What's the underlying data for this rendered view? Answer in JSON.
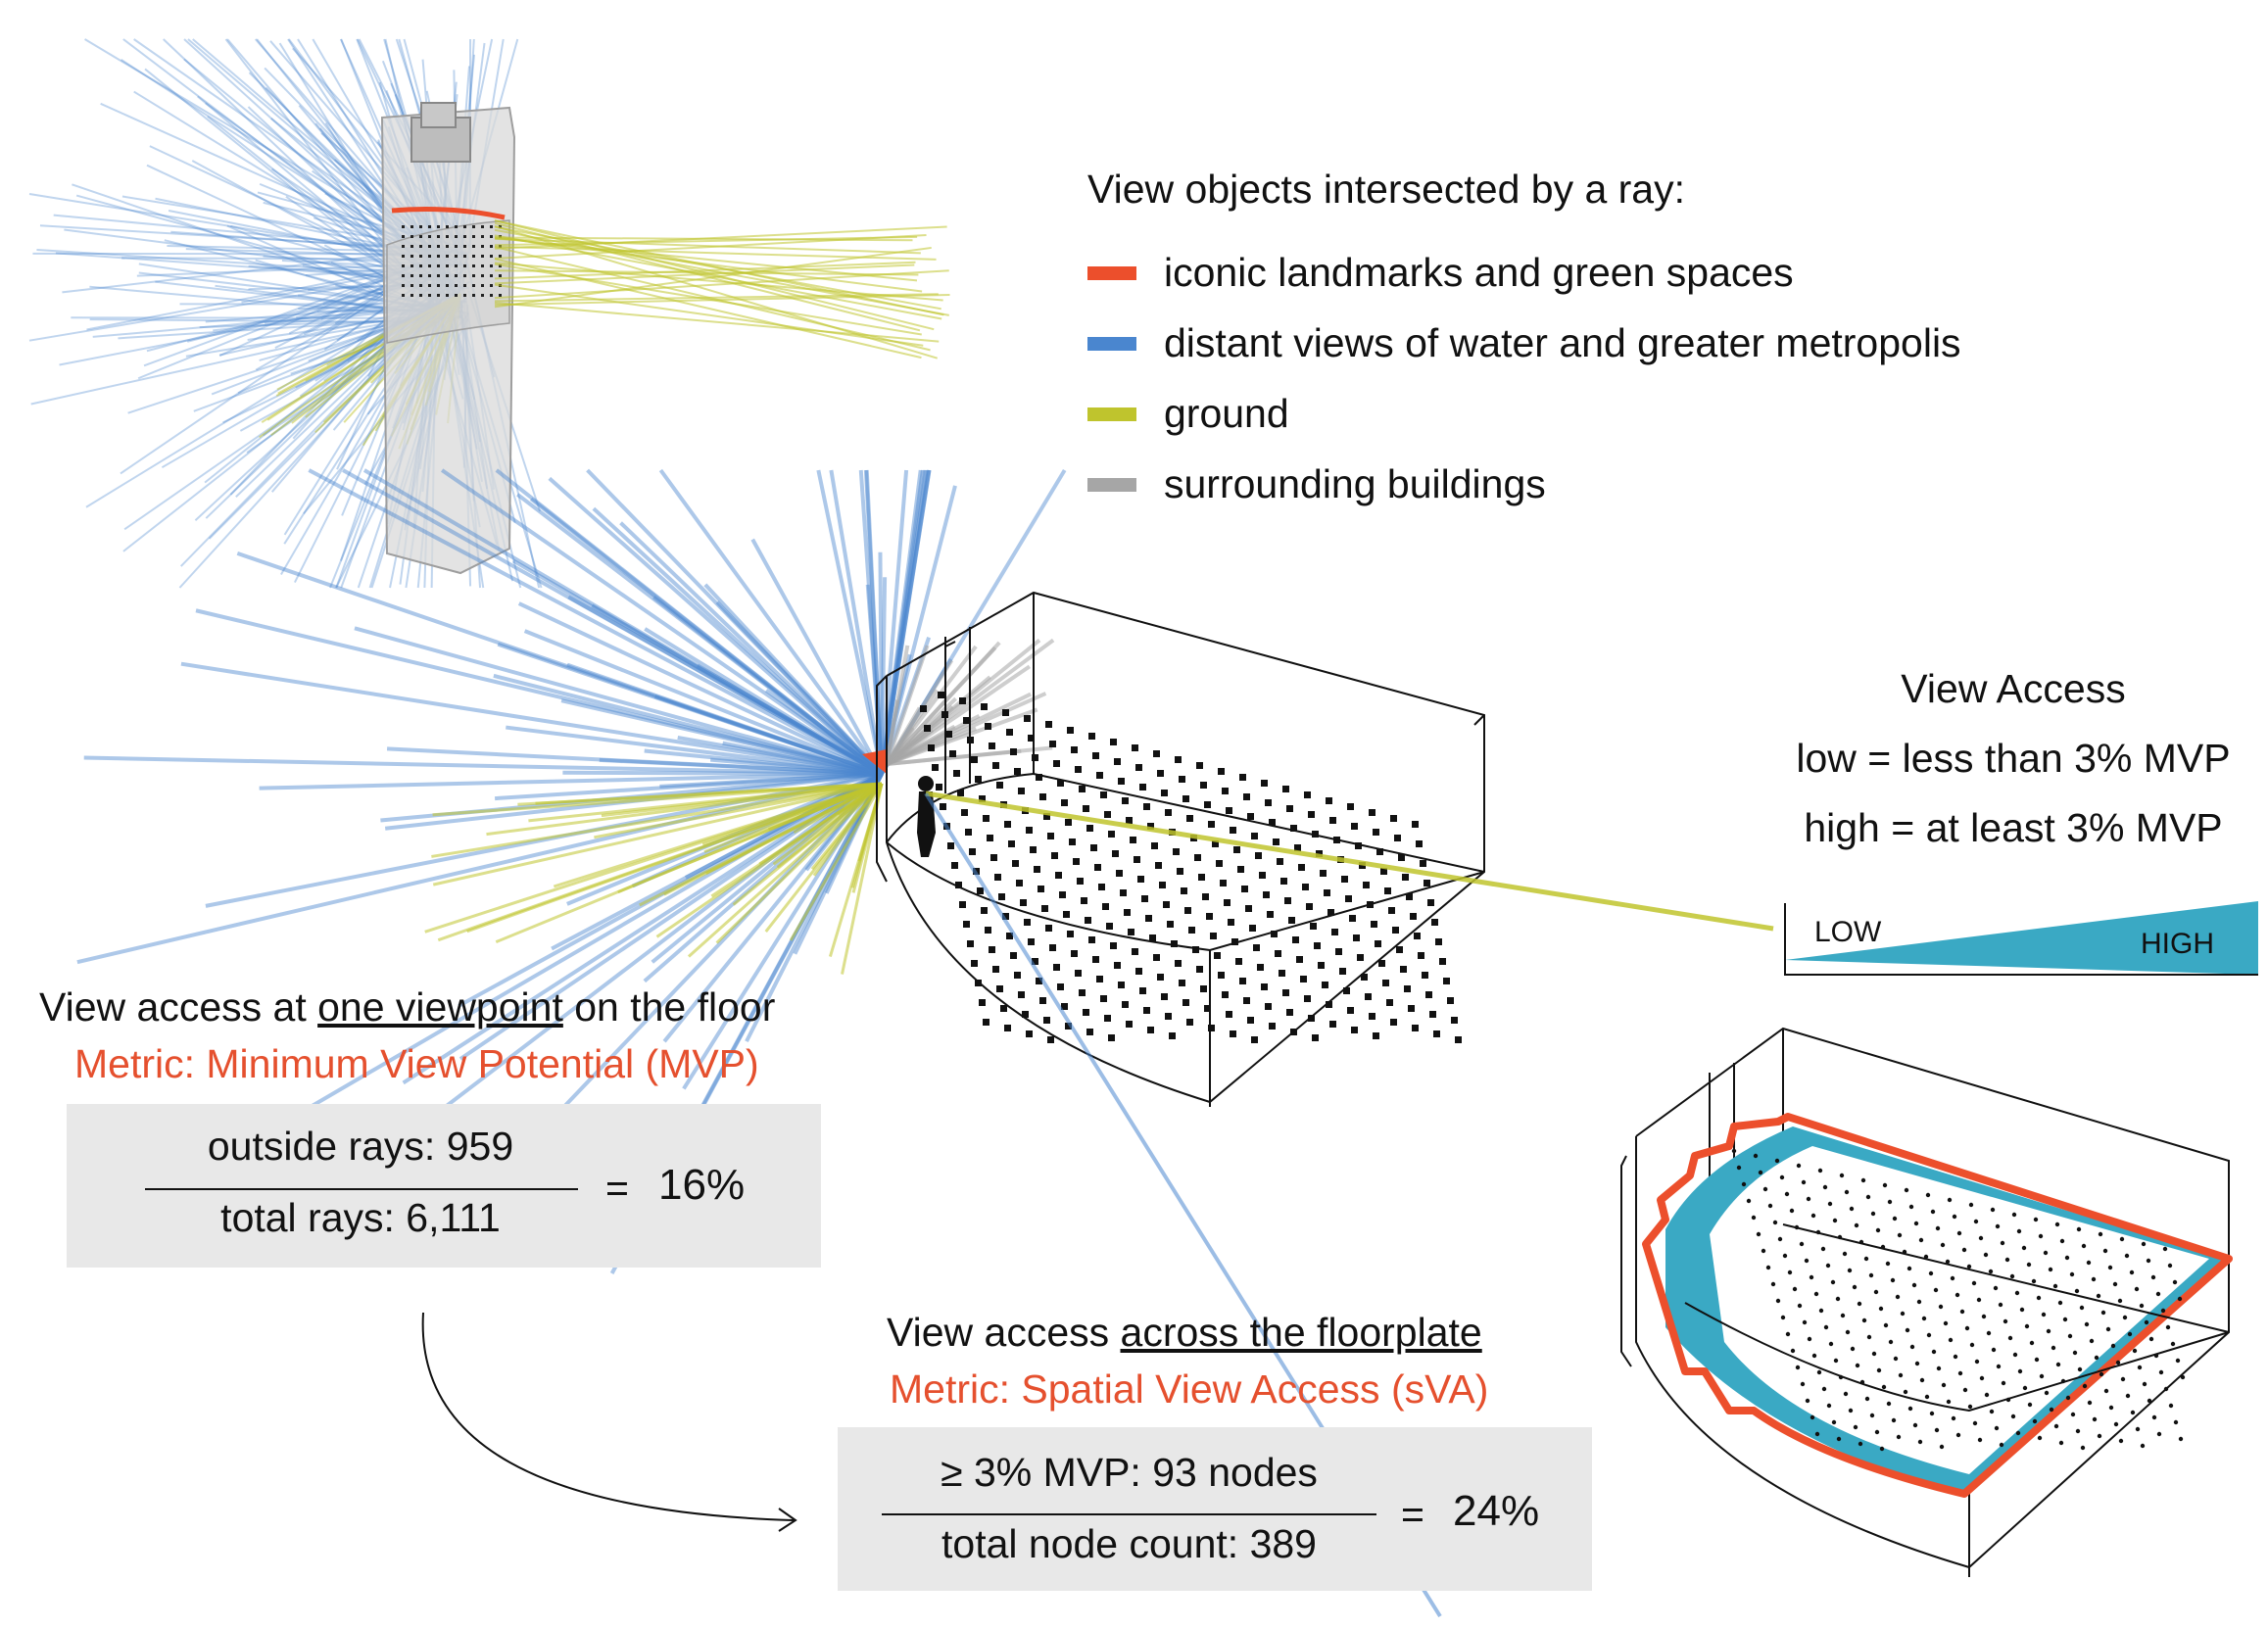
{
  "legend": {
    "title": "View objects intersected by a ray:",
    "items": [
      {
        "label": "iconic landmarks and green spaces",
        "color": "#ec4f2c"
      },
      {
        "label": "distant views of water and greater metropolis",
        "color": "#4a86cf"
      },
      {
        "label": "ground",
        "color": "#bfc42d"
      },
      {
        "label": "surrounding buildings",
        "color": "#a6a6a6"
      }
    ]
  },
  "view_access": {
    "title": "View Access",
    "low_def": "low = less than 3% MVP",
    "high_def": "high = at least 3% MVP",
    "low_label": "LOW",
    "high_label": "HIGH",
    "gradient_color": "#3aa9c4"
  },
  "viewpoint": {
    "heading_pre": "View access at ",
    "heading_underlined": "one viewpoint",
    "heading_post": " on the floor",
    "metric": "Metric: Minimum View Potential (MVP)",
    "numerator": "outside rays: 959",
    "denominator": "total rays: 6,111",
    "equals": "=",
    "result": "16%"
  },
  "floorplate": {
    "heading_pre": "View access ",
    "heading_underlined": "across the floorplate",
    "metric": "Metric: Spatial View Access (sVA)",
    "numerator": "≥ 3% MVP: 93 nodes",
    "denominator": "total node count: 389",
    "equals": "=",
    "result": "24%"
  },
  "colors": {
    "accent": "#e5502e",
    "box_fill": "#e8e8e8"
  }
}
